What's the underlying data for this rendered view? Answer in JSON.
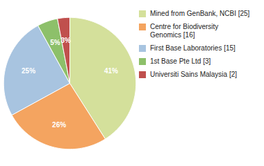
{
  "chart_data": {
    "type": "pie",
    "categories": [
      "Mined from GenBank, NCBI [25]",
      "Centre for Biodiversity\nGenomics [16]",
      "First Base Laboratories [15]",
      "1st Base Pte Ltd [3]",
      "Universiti Sains Malaysia [2]"
    ],
    "values": [
      41,
      26,
      25,
      5,
      3
    ],
    "value_labels": [
      "41%",
      "26%",
      "25%",
      "5%",
      "3%"
    ],
    "colors": [
      "#d4e09b",
      "#f4a460",
      "#a8c4e0",
      "#8dc06a",
      "#c0504d"
    ],
    "data_labels": true,
    "legend": "right"
  }
}
